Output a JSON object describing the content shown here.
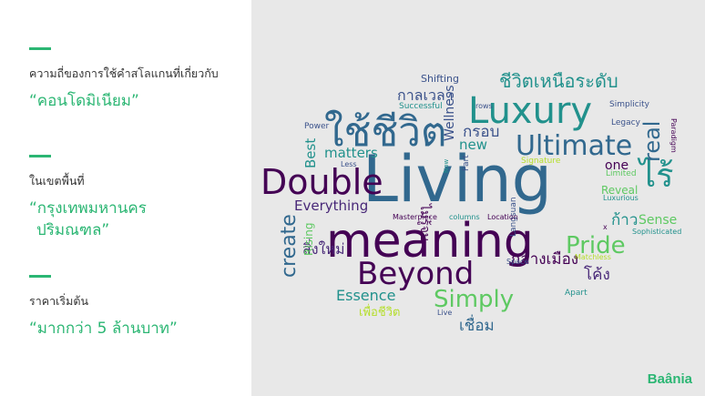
{
  "sidebar": {
    "items": [
      {
        "label": "ความถี่ของการใช้คำสโลแกนที่เกี่ยวกับ",
        "value_lines": [
          "“คอนโดมิเนียม”"
        ]
      },
      {
        "label": "ในเขตพื้นที่",
        "value_lines": [
          "“กรุงเทพมหานคร",
          "ปริมณฑล”"
        ]
      },
      {
        "label": "ราคาเริ่มต้น",
        "value_lines": [
          "“มากกว่า 5 ล้านบาท”"
        ]
      }
    ]
  },
  "brand": "Baânia",
  "accent_color": "#2bb673",
  "wordcloud": {
    "words": [
      {
        "text": "Living",
        "color": "#31688e"
      },
      {
        "text": "meaning",
        "color": "#440154"
      },
      {
        "text": "Double",
        "color": "#440154"
      },
      {
        "text": "Luxury",
        "color": "#21918c"
      },
      {
        "text": "ใช้ชีวิต",
        "color": "#31688e"
      },
      {
        "text": "Ultimate",
        "color": "#31688e"
      },
      {
        "text": "Beyond",
        "color": "#440154"
      },
      {
        "text": "Pride",
        "color": "#5ec962"
      },
      {
        "text": "Simply",
        "color": "#5ec962"
      },
      {
        "text": "ไร้",
        "color": "#21918c"
      },
      {
        "text": "ชีวิตเหนือระดับ",
        "color": "#21918c"
      },
      {
        "text": "create",
        "color": "#31688e"
      },
      {
        "text": "Essence",
        "color": "#21918c"
      },
      {
        "text": "กลางเมือง",
        "color": "#440154"
      },
      {
        "text": "เชื่อม",
        "color": "#31688e"
      },
      {
        "text": "Everything",
        "color": "#482878"
      },
      {
        "text": "สิ่งใหม่",
        "color": "#482878"
      },
      {
        "text": "ไม่รู้จบ",
        "color": "#440154"
      },
      {
        "text": "กรอบ",
        "color": "#3b528b"
      },
      {
        "text": "new",
        "color": "#21918c"
      },
      {
        "text": "matters",
        "color": "#21918c"
      },
      {
        "text": "Best",
        "color": "#21918c"
      },
      {
        "text": "real",
        "color": "#31688e"
      },
      {
        "text": "Wellness",
        "color": "#3b528b"
      },
      {
        "text": "ก้าว",
        "color": "#21918c"
      },
      {
        "text": "Sense",
        "color": "#5ec962"
      },
      {
        "text": "one",
        "color": "#440154"
      },
      {
        "text": "Reveal",
        "color": "#5ec962"
      },
      {
        "text": "Shifting",
        "color": "#3b528b"
      },
      {
        "text": "กาลเวลา",
        "color": "#3b528b"
      },
      {
        "text": "Simplicity",
        "color": "#3b528b"
      },
      {
        "text": "Signature",
        "color": "#b5de2b"
      },
      {
        "text": "Successful",
        "color": "#21918c"
      },
      {
        "text": "Power",
        "color": "#3b528b"
      },
      {
        "text": "rows",
        "color": "#3b528b"
      },
      {
        "text": "Legacy",
        "color": "#3b528b"
      },
      {
        "text": "Paradigm",
        "color": "#440154"
      },
      {
        "text": "Limited",
        "color": "#5ec962"
      },
      {
        "text": "Luxurious",
        "color": "#21918c"
      },
      {
        "text": "Sophisticated",
        "color": "#21918c"
      },
      {
        "text": "Less",
        "color": "#3b528b"
      },
      {
        "text": "Now",
        "color": "#21918c"
      },
      {
        "text": "Part",
        "color": "#3b528b"
      },
      {
        "text": "Langsuan",
        "color": "#3b528b"
      },
      {
        "text": "Masterpiece",
        "color": "#440154"
      },
      {
        "text": "columns",
        "color": "#21918c"
      },
      {
        "text": "Location",
        "color": "#440154"
      },
      {
        "text": "Rising",
        "color": "#5ec962"
      },
      {
        "text": "Space",
        "color": "#3b528b"
      },
      {
        "text": "Matchless",
        "color": "#b5de2b"
      },
      {
        "text": "Apart",
        "color": "#21918c"
      },
      {
        "text": "โค้ง",
        "color": "#482878"
      },
      {
        "text": "เพื่อชีวิต",
        "color": "#b5de2b"
      },
      {
        "text": "Live",
        "color": "#3b528b"
      },
      {
        "text": "x",
        "color": "#440154"
      }
    ]
  }
}
